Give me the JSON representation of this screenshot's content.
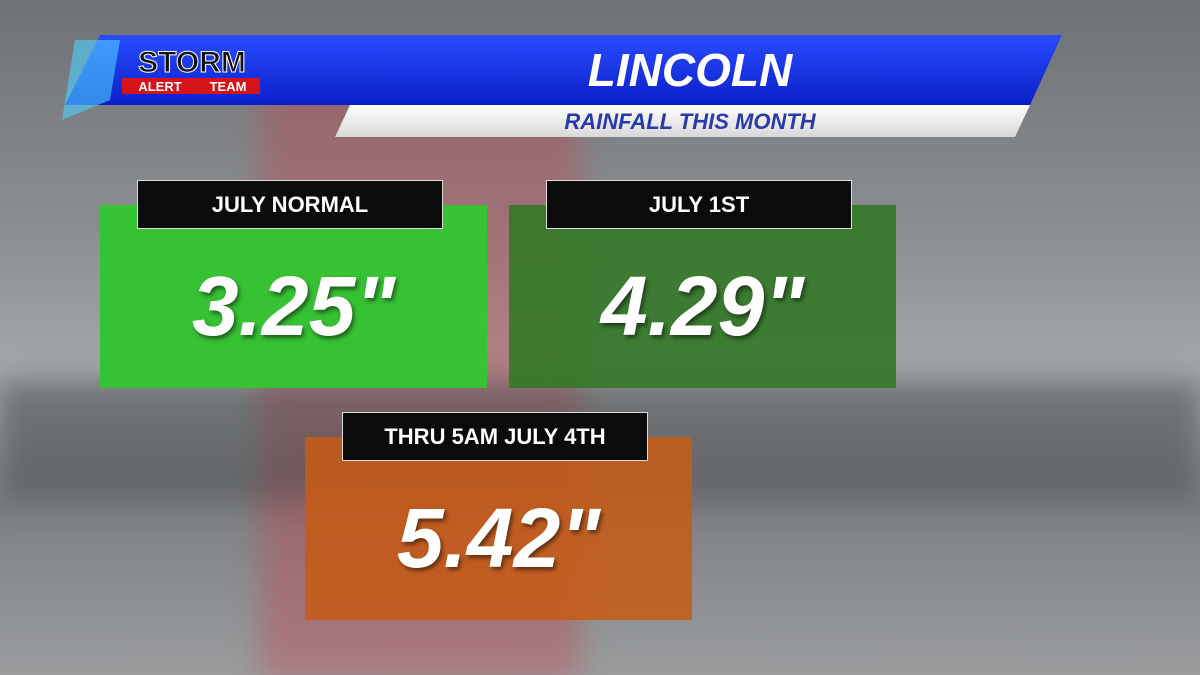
{
  "header": {
    "logo": {
      "top": "STORM",
      "left": "ALERT",
      "right": "TEAM"
    },
    "title": "LINCOLN",
    "subtitle": "RAINFALL THIS MONTH"
  },
  "panels": [
    {
      "label": "JULY NORMAL",
      "value": "3.25\""
    },
    {
      "label": "JULY 1ST",
      "value": "4.29\""
    },
    {
      "label": "THRU 5AM JULY 4TH",
      "value": "5.42\""
    }
  ]
}
